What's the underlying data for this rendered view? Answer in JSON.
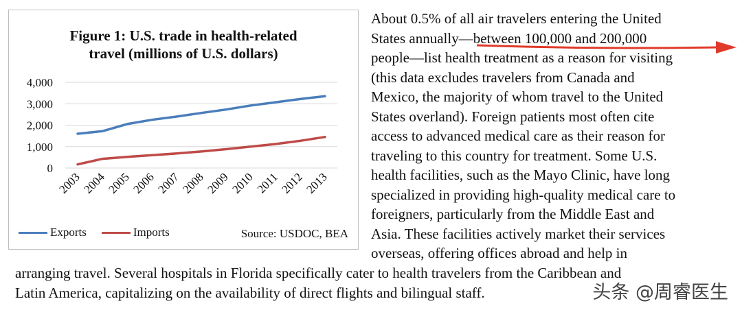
{
  "chart_data": {
    "type": "line",
    "title_lines": [
      "Figure 1: U.S. trade in health-related",
      "travel (millions of U.S. dollars)"
    ],
    "x": [
      "2003",
      "2004",
      "2005",
      "2006",
      "2007",
      "2008",
      "2009",
      "2010",
      "2011",
      "2012",
      "2013"
    ],
    "ylim": [
      0,
      4000
    ],
    "y_ticks": [
      "0",
      "1,000",
      "2,000",
      "3,000",
      "4,000"
    ],
    "grid": true,
    "series": [
      {
        "name": "Exports",
        "color": "#4a7ebb",
        "values": [
          1600,
          1720,
          2050,
          2250,
          2400,
          2570,
          2730,
          2920,
          3070,
          3220,
          3350
        ]
      },
      {
        "name": "Imports",
        "color": "#be4b48",
        "values": [
          170,
          430,
          520,
          600,
          680,
          770,
          880,
          1000,
          1120,
          1270,
          1450
        ]
      }
    ],
    "source": "Source: USDOC, BEA"
  },
  "right_text": [
    "About 0.5% of all air travelers entering the United",
    "States annually—between 100,000 and 200,000",
    "people—list health treatment as a reason for visiting",
    "(this data excludes travelers from Canada and",
    "Mexico, the majority of whom travel to the United",
    "States overland). Foreign patients most often cite",
    "access to advanced medical care as their reason for",
    "traveling to this country for treatment. Some U.S.",
    "health facilities, such as the Mayo Clinic, have long",
    "specialized in providing high-quality medical care to",
    "foreigners, particularly from the Middle East and",
    "Asia. These facilities actively market their services",
    "overseas, offering offices abroad and help in"
  ],
  "bottom_text": [
    "arranging travel. Several hospitals in Florida specifically cater to health travelers from the Caribbean and",
    "Latin America, capitalizing on the availability of direct flights and bilingual staff."
  ],
  "watermark": "头条 @周睿医生",
  "colors": {
    "arrow": "#e03a2a"
  }
}
